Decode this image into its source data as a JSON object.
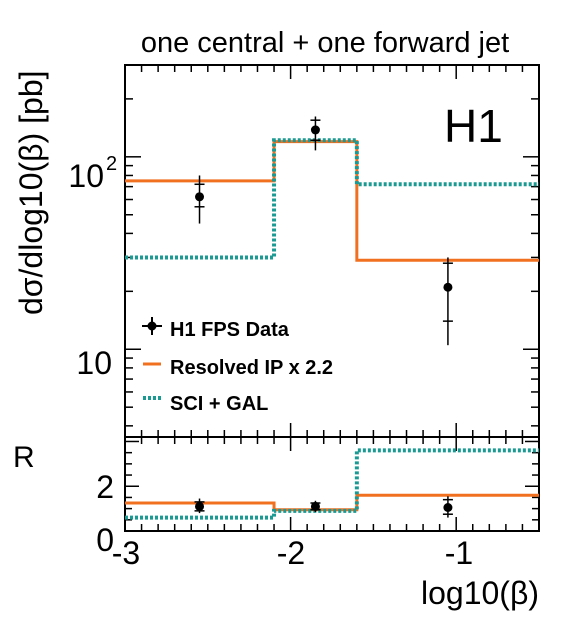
{
  "chart_data": [
    {
      "type": "step",
      "panel": "upper",
      "title": "one central + one forward jet",
      "experiment_label": "H1",
      "ylabel": "dσ/dlog10(β) [pb]",
      "y_scale": "log",
      "xlim": [
        -3.0,
        -0.5
      ],
      "ylim": [
        3.5,
        300
      ],
      "y_major_ticks": [
        {
          "value": 10,
          "label": "10"
        },
        {
          "value": 100,
          "label": "10",
          "exponent": "2"
        }
      ],
      "bin_edges": [
        -3.0,
        -2.1,
        -1.6,
        -0.5
      ],
      "legend": {
        "placement": "lower-left",
        "entries": [
          "H1 FPS Data",
          "Resolved IP x 2.2",
          "SCI + GAL"
        ]
      },
      "series": [
        {
          "name": "H1 FPS Data",
          "kind": "points",
          "color": "#000000",
          "x": [
            -2.55,
            -1.85,
            -1.05
          ],
          "y": [
            62,
            138,
            21
          ],
          "stat_err": [
            [
              55,
              72
            ],
            [
              122,
              155
            ],
            [
              14,
              28
            ]
          ],
          "total_err": [
            [
              45,
              80
            ],
            [
              108,
              162
            ],
            [
              10.5,
              30
            ]
          ]
        },
        {
          "name": "Resolved IP x 2.2",
          "kind": "step",
          "color": "#f07020",
          "values": [
            75,
            120,
            29
          ]
        },
        {
          "name": "SCI + GAL",
          "kind": "step",
          "color": "#1a9a92",
          "values": [
            30,
            122,
            72
          ]
        }
      ]
    },
    {
      "type": "step",
      "panel": "ratio",
      "ylabel": "R",
      "xlabel": "log10(β)",
      "xlim": [
        -3.0,
        -0.5
      ],
      "ylim": [
        0,
        4.2
      ],
      "x_major_ticks": [
        {
          "value": -3,
          "label": "-3"
        },
        {
          "value": -2,
          "label": "-2"
        },
        {
          "value": -1,
          "label": "-1"
        }
      ],
      "y_major_ticks": [
        {
          "value": 0,
          "label": "0"
        },
        {
          "value": 2,
          "label": "2"
        }
      ],
      "bin_edges": [
        -3.0,
        -2.1,
        -1.6,
        -0.5
      ],
      "series": [
        {
          "name": "H1 FPS Data",
          "kind": "points",
          "color": "#000000",
          "x": [
            -2.55,
            -1.85,
            -1.05
          ],
          "y": [
            1.1,
            1.1,
            1.05
          ],
          "stat_err": [
            [
              0.9,
              1.3
            ],
            [
              0.95,
              1.25
            ],
            [
              0.75,
              1.4
            ]
          ],
          "total_err": [
            [
              0.8,
              1.45
            ],
            [
              0.85,
              1.35
            ],
            [
              0.6,
              1.55
            ]
          ]
        },
        {
          "name": "Resolved IP x 2.2",
          "kind": "step",
          "color": "#f07020",
          "values": [
            1.25,
            0.95,
            1.6
          ]
        },
        {
          "name": "SCI + GAL",
          "kind": "step",
          "color": "#1a9a92",
          "values": [
            0.6,
            0.9,
            3.6
          ]
        }
      ]
    }
  ]
}
